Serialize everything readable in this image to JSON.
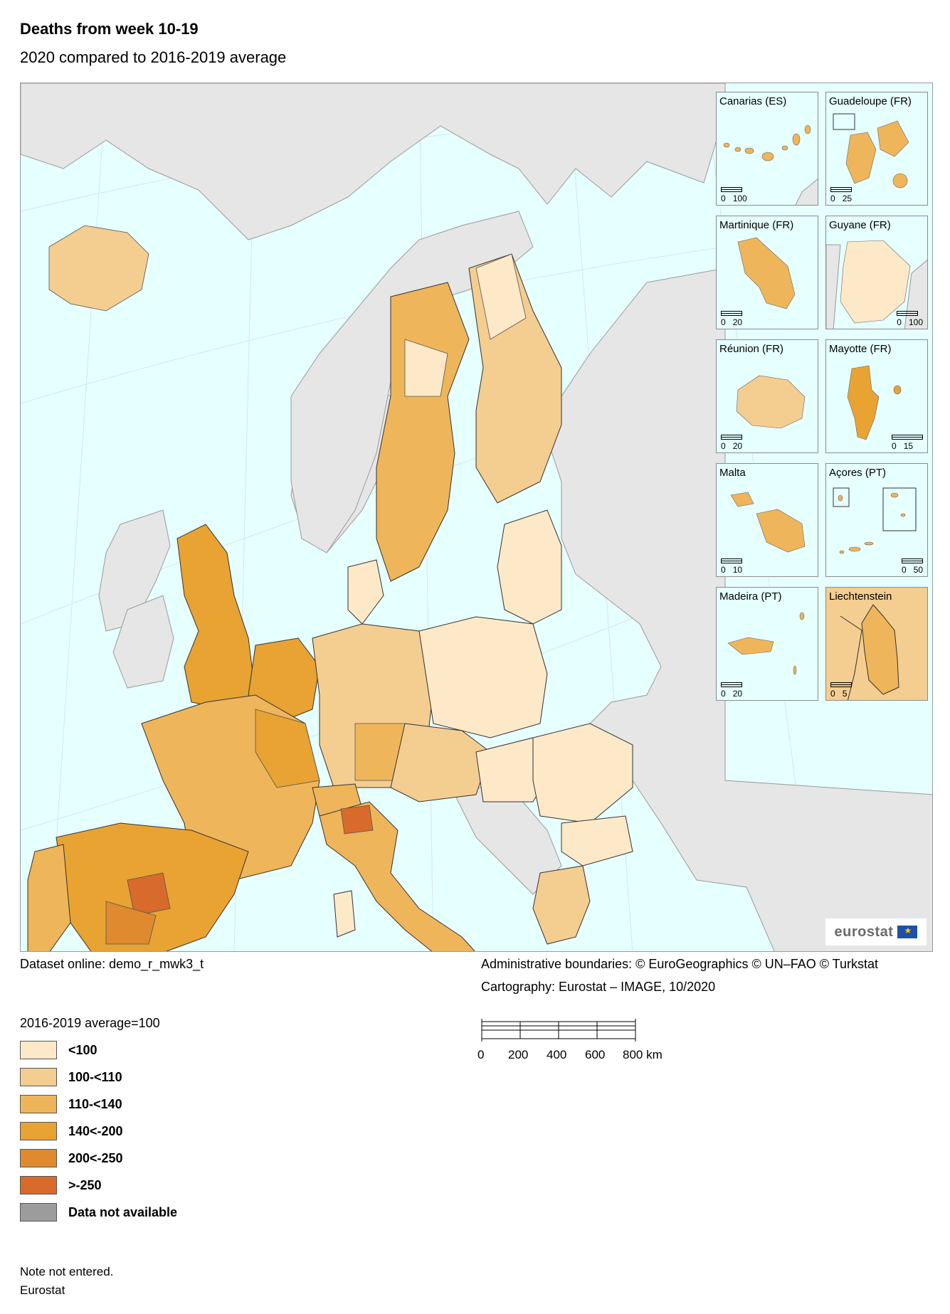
{
  "title": "Deaths from week 10-19",
  "subtitle": "2020 compared to 2016-2019 average",
  "colors": {
    "sea": "#e6ffff",
    "non_eu_land": "#e6e6e6",
    "lt100": "#fde9c8",
    "r100_110": "#f4cd90",
    "r110_140": "#efb55a",
    "r140_200": "#e8a333",
    "r200_250": "#df8a2e",
    "gt250": "#d86a2b",
    "na": "#9c9c9c"
  },
  "insets": [
    {
      "name": "Canarias (ES)",
      "scale": [
        "0",
        "100"
      ],
      "fill": "#efb55a"
    },
    {
      "name": "Guadeloupe (FR)",
      "scale": [
        "0",
        "25"
      ],
      "fill": "#efb55a"
    },
    {
      "name": "Martinique (FR)",
      "scale": [
        "0",
        "20"
      ],
      "fill": "#efb55a"
    },
    {
      "name": "Guyane (FR)",
      "scale": [
        "0",
        "100"
      ],
      "fill": "#fde9c8"
    },
    {
      "name": "Réunion (FR)",
      "scale": [
        "0",
        "20"
      ],
      "fill": "#f4cd90"
    },
    {
      "name": "Mayotte (FR)",
      "scale": [
        "0",
        "15"
      ],
      "fill": "#e8a333"
    },
    {
      "name": "Malta",
      "scale": [
        "0",
        "10"
      ],
      "fill": "#efb55a"
    },
    {
      "name": "Açores (PT)",
      "scale": [
        "0",
        "50"
      ],
      "fill": "#efb55a"
    },
    {
      "name": "Madeira (PT)",
      "scale": [
        "0",
        "20"
      ],
      "fill": "#efb55a"
    },
    {
      "name": "Liechtenstein",
      "scale": [
        "0",
        "5"
      ],
      "fill": "#efb55a"
    }
  ],
  "logo": "eurostat",
  "dataset": "Dataset online: demo_r_mwk3_t",
  "boundaries": "Administrative boundaries: © EuroGeographics © UN–FAO © Turkstat",
  "cartography": "Cartography: Eurostat – IMAGE, 10/2020",
  "legend": {
    "title": "2016-2019 average=100",
    "items": [
      {
        "label": "<100",
        "color": "#fde9c8"
      },
      {
        "label": "100-<110",
        "color": "#f4cd90"
      },
      {
        "label": "110-<140",
        "color": "#efb55a"
      },
      {
        "label": "140<-200",
        "color": "#e8a333"
      },
      {
        "label": "200<-250",
        "color": "#df8a2e"
      },
      {
        "label": ">-250",
        "color": "#d86a2b"
      },
      {
        "label": "Data not available",
        "color": "#9c9c9c"
      }
    ]
  },
  "scalebar": {
    "ticks": [
      "0",
      "200",
      "400",
      "600",
      "800 km"
    ]
  },
  "note": "Note not entered.",
  "source": "Eurostat"
}
